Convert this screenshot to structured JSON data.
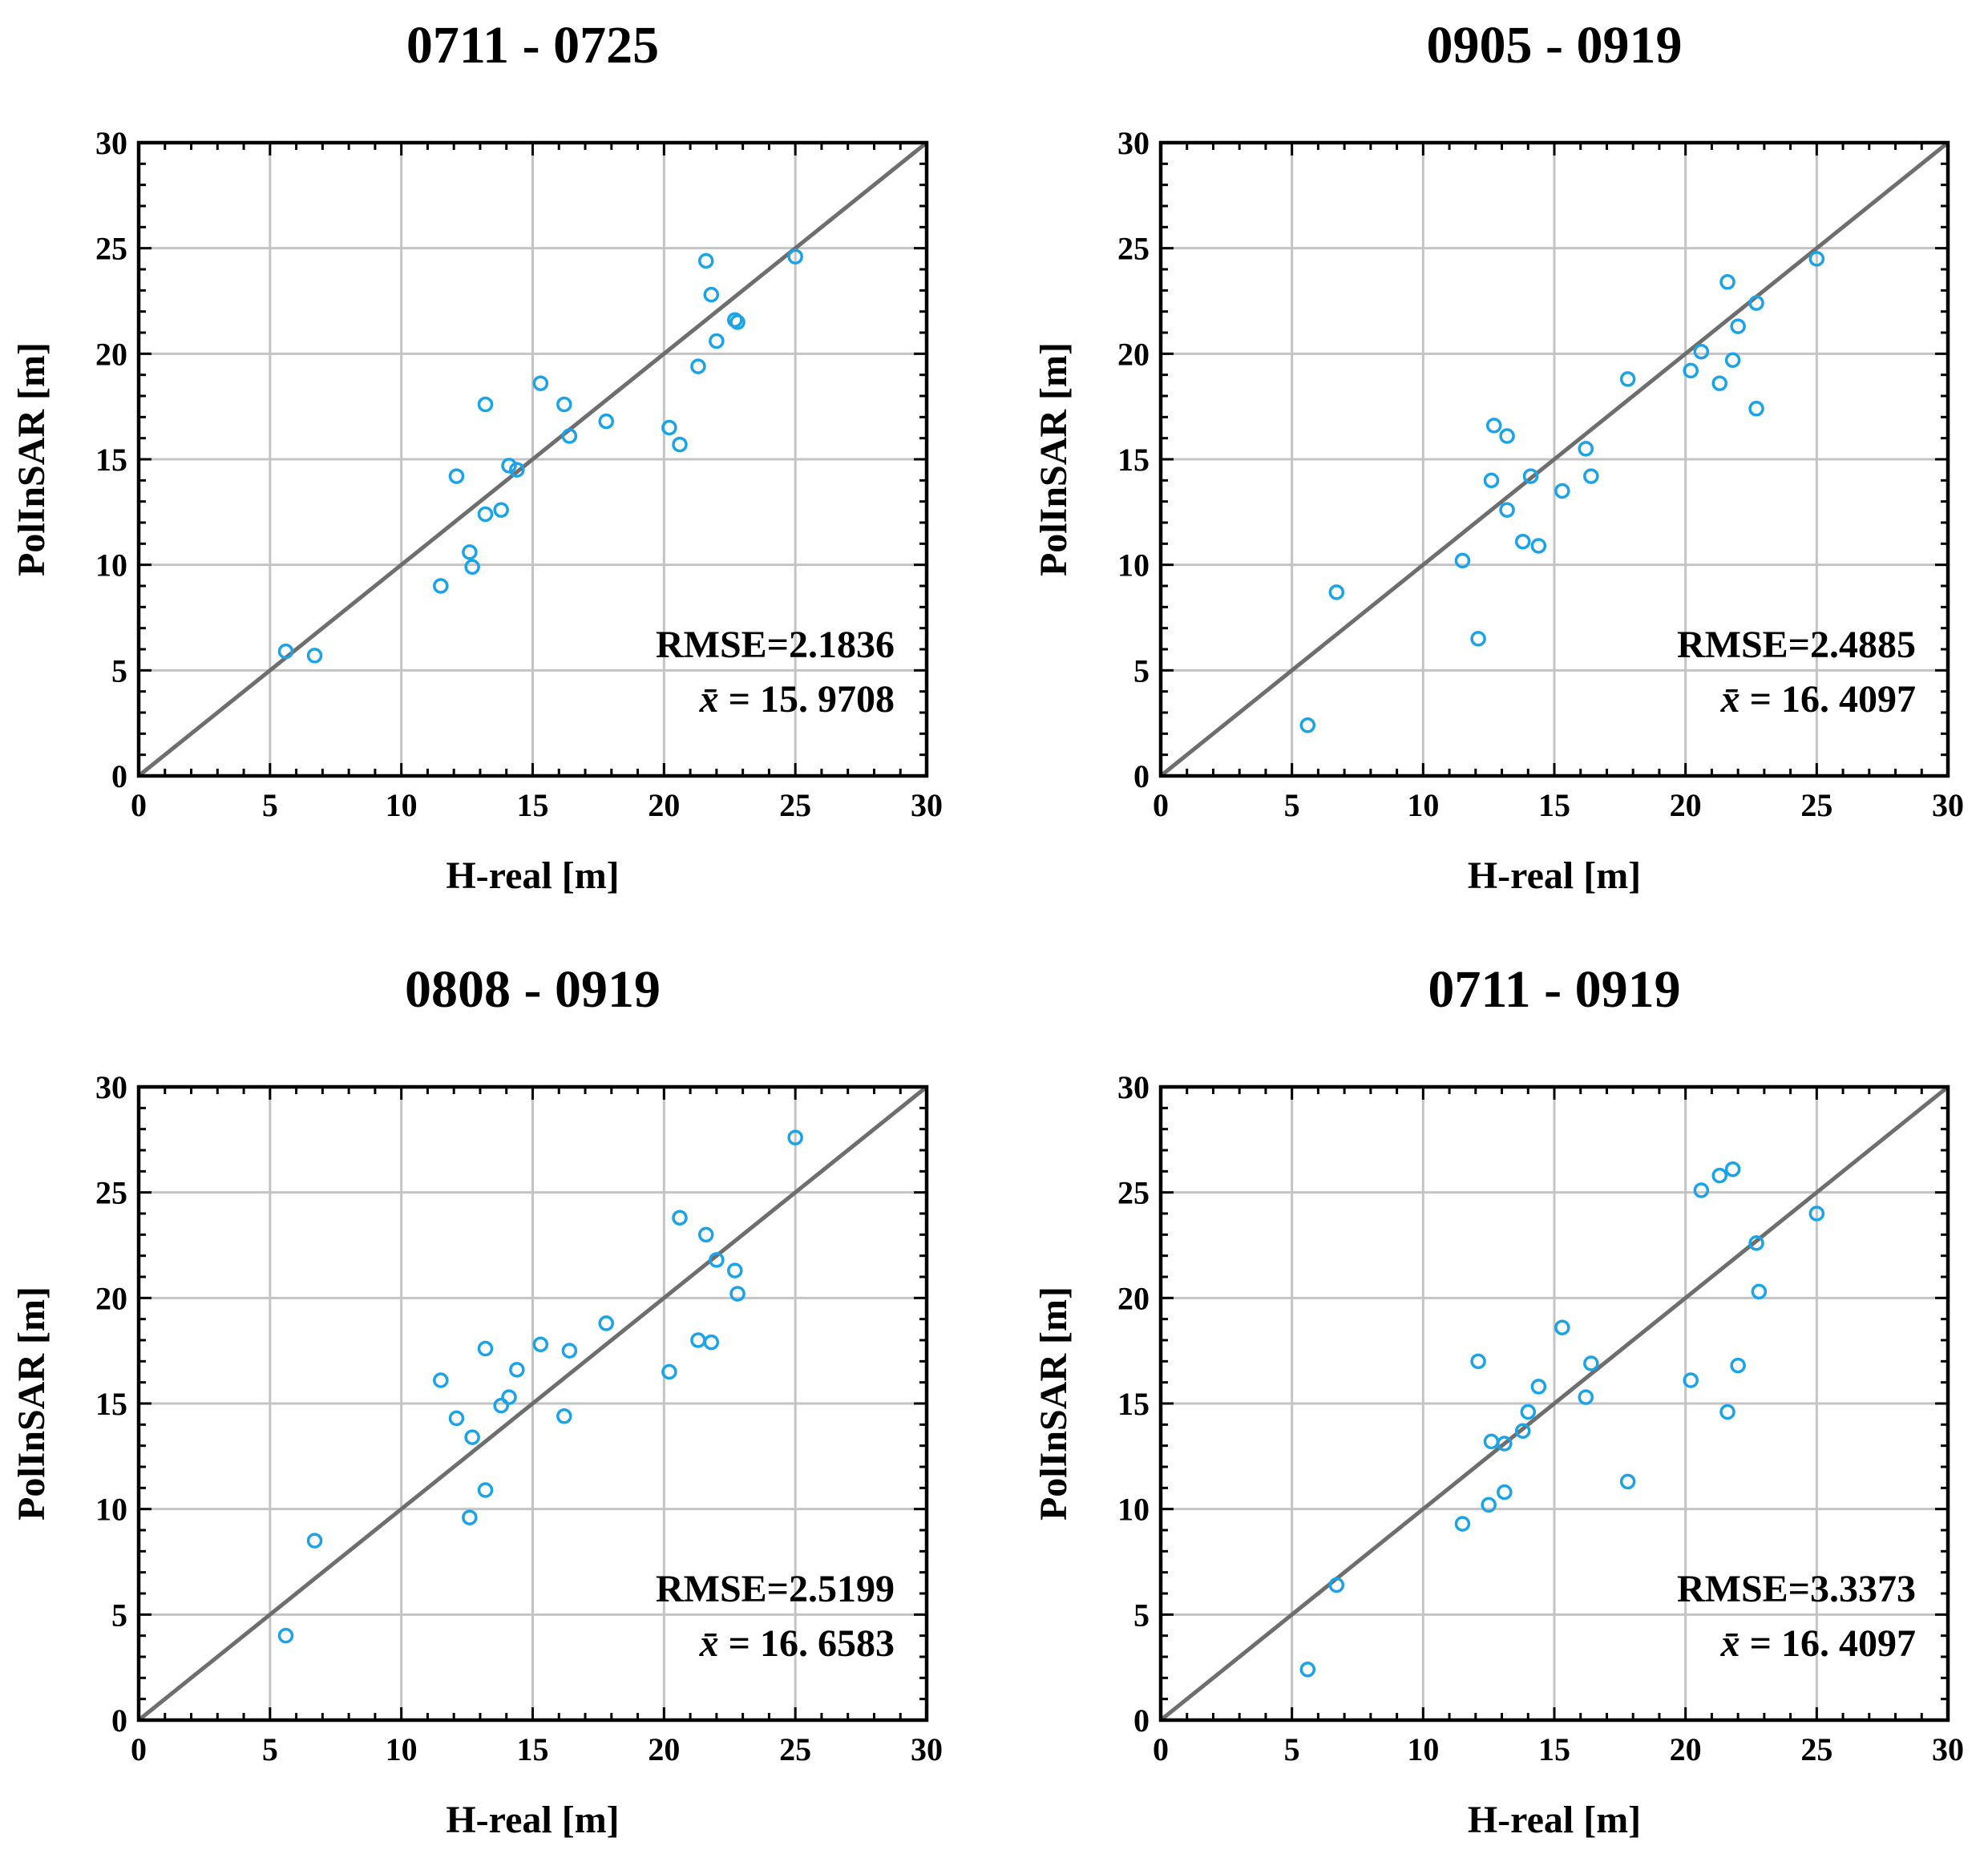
{
  "colors": {
    "marker": "#1aa3e8",
    "grid": "#c4c4c4",
    "diagonal": "#6e6e6e",
    "axes": "#000000"
  },
  "chart_data": [
    {
      "type": "scatter",
      "title": "0711 - 0725",
      "xlabel": "H-real [m]",
      "ylabel": "PolInSAR [m]",
      "xlim": [
        0,
        30
      ],
      "ylim": [
        0,
        30
      ],
      "xticks": [
        0,
        5,
        10,
        15,
        20,
        25,
        30
      ],
      "yticks": [
        0,
        5,
        10,
        15,
        20,
        25,
        30
      ],
      "grid": true,
      "reference_line": "y = x",
      "rmse_text": "RMSE=2.1836",
      "mean_symbol": "x̄",
      "mean_text": "= 15. 9708",
      "points": [
        [
          5.6,
          5.9
        ],
        [
          6.7,
          5.7
        ],
        [
          11.5,
          9.0
        ],
        [
          12.1,
          14.2
        ],
        [
          12.6,
          10.6
        ],
        [
          12.7,
          9.9
        ],
        [
          13.2,
          17.6
        ],
        [
          13.2,
          12.4
        ],
        [
          13.8,
          12.6
        ],
        [
          14.1,
          14.7
        ],
        [
          14.4,
          14.5
        ],
        [
          15.3,
          18.6
        ],
        [
          16.2,
          17.6
        ],
        [
          16.4,
          16.1
        ],
        [
          17.8,
          16.8
        ],
        [
          20.2,
          16.5
        ],
        [
          20.6,
          15.7
        ],
        [
          21.3,
          19.4
        ],
        [
          21.6,
          24.4
        ],
        [
          21.8,
          22.8
        ],
        [
          22.0,
          20.6
        ],
        [
          22.7,
          21.6
        ],
        [
          22.8,
          21.5
        ],
        [
          25.0,
          24.6
        ]
      ]
    },
    {
      "type": "scatter",
      "title": "0905 - 0919",
      "xlabel": "H-real [m]",
      "ylabel": "PolInSAR [m]",
      "xlim": [
        0,
        30
      ],
      "ylim": [
        0,
        30
      ],
      "xticks": [
        0,
        5,
        10,
        15,
        20,
        25,
        30
      ],
      "yticks": [
        0,
        5,
        10,
        15,
        20,
        25,
        30
      ],
      "grid": true,
      "reference_line": "y = x",
      "rmse_text": "RMSE=2.4885",
      "mean_symbol": "x̄",
      "mean_text": "= 16. 4097",
      "points": [
        [
          5.6,
          2.4
        ],
        [
          6.7,
          8.7
        ],
        [
          11.5,
          10.2
        ],
        [
          12.1,
          6.5
        ],
        [
          12.6,
          14.0
        ],
        [
          12.7,
          16.6
        ],
        [
          13.2,
          16.1
        ],
        [
          13.2,
          12.6
        ],
        [
          13.8,
          11.1
        ],
        [
          14.1,
          14.2
        ],
        [
          14.4,
          10.9
        ],
        [
          15.3,
          13.5
        ],
        [
          16.2,
          15.5
        ],
        [
          16.4,
          14.2
        ],
        [
          17.8,
          18.8
        ],
        [
          20.2,
          19.2
        ],
        [
          20.6,
          20.1
        ],
        [
          21.3,
          18.6
        ],
        [
          21.6,
          23.4
        ],
        [
          21.8,
          19.7
        ],
        [
          22.0,
          21.3
        ],
        [
          22.7,
          22.4
        ],
        [
          22.7,
          17.4
        ],
        [
          25.0,
          24.5
        ]
      ]
    },
    {
      "type": "scatter",
      "title": "0808 - 0919",
      "xlabel": "H-real [m]",
      "ylabel": "PolInSAR [m]",
      "xlim": [
        0,
        30
      ],
      "ylim": [
        0,
        30
      ],
      "xticks": [
        0,
        5,
        10,
        15,
        20,
        25,
        30
      ],
      "yticks": [
        0,
        5,
        10,
        15,
        20,
        25,
        30
      ],
      "grid": true,
      "reference_line": "y = x",
      "rmse_text": "RMSE=2.5199",
      "mean_symbol": "x̄",
      "mean_text": "= 16. 6583",
      "points": [
        [
          5.6,
          4.0
        ],
        [
          6.7,
          8.5
        ],
        [
          11.5,
          16.1
        ],
        [
          12.1,
          14.3
        ],
        [
          12.6,
          9.6
        ],
        [
          12.7,
          13.4
        ],
        [
          13.2,
          17.6
        ],
        [
          13.2,
          10.9
        ],
        [
          13.8,
          14.9
        ],
        [
          14.1,
          15.3
        ],
        [
          14.4,
          16.6
        ],
        [
          15.3,
          17.8
        ],
        [
          16.2,
          14.4
        ],
        [
          16.4,
          17.5
        ],
        [
          17.8,
          18.8
        ],
        [
          20.2,
          16.5
        ],
        [
          20.6,
          23.8
        ],
        [
          21.3,
          18.0
        ],
        [
          21.6,
          23.0
        ],
        [
          21.8,
          17.9
        ],
        [
          22.0,
          21.8
        ],
        [
          22.7,
          21.3
        ],
        [
          22.8,
          20.2
        ],
        [
          25.0,
          27.6
        ]
      ]
    },
    {
      "type": "scatter",
      "title": "0711 - 0919",
      "xlabel": "H-real [m]",
      "ylabel": "PolInSAR [m]",
      "xlim": [
        0,
        30
      ],
      "ylim": [
        0,
        30
      ],
      "xticks": [
        0,
        5,
        10,
        15,
        20,
        25,
        30
      ],
      "yticks": [
        0,
        5,
        10,
        15,
        20,
        25,
        30
      ],
      "grid": true,
      "reference_line": "y = x",
      "rmse_text": "RMSE=3.3373",
      "mean_symbol": "x̄",
      "mean_text": "= 16. 4097",
      "points": [
        [
          5.6,
          2.4
        ],
        [
          6.7,
          6.4
        ],
        [
          11.5,
          9.3
        ],
        [
          12.1,
          17.0
        ],
        [
          12.5,
          10.2
        ],
        [
          12.6,
          13.2
        ],
        [
          13.1,
          13.1
        ],
        [
          13.1,
          10.8
        ],
        [
          13.8,
          13.7
        ],
        [
          14.0,
          14.6
        ],
        [
          14.4,
          15.8
        ],
        [
          15.3,
          18.6
        ],
        [
          16.2,
          15.3
        ],
        [
          16.4,
          16.9
        ],
        [
          17.8,
          11.3
        ],
        [
          20.2,
          16.1
        ],
        [
          20.6,
          25.1
        ],
        [
          21.3,
          25.8
        ],
        [
          21.6,
          14.6
        ],
        [
          21.8,
          26.1
        ],
        [
          22.0,
          16.8
        ],
        [
          22.7,
          22.6
        ],
        [
          22.8,
          20.3
        ],
        [
          25.0,
          24.0
        ]
      ]
    }
  ]
}
